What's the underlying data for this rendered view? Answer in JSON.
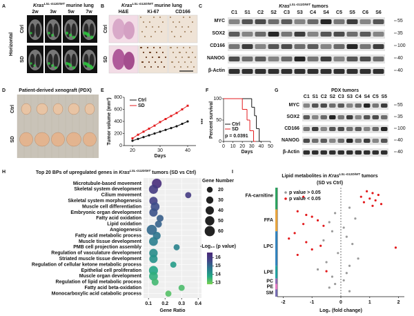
{
  "panel_letters": [
    "A",
    "B",
    "C",
    "D",
    "E",
    "F",
    "G",
    "H",
    "I"
  ],
  "panel_a": {
    "title": {
      "gene": "Kras",
      "allele": "LSL-G12D/WT",
      "post": "murine lung"
    },
    "columns": [
      "2w",
      "3w",
      "5w",
      "7w"
    ],
    "rows": [
      "Ctrl",
      "SD"
    ],
    "side_label": "Horizontal"
  },
  "panel_b": {
    "title": {
      "gene": "Kras",
      "allele": "LSL-G12D/WT",
      "post": "murine lung"
    },
    "columns": [
      "H&E",
      "Ki-67",
      "CD166"
    ],
    "rows": [
      "Ctrl",
      "SD"
    ]
  },
  "panel_c": {
    "title": {
      "gene": "Kras",
      "allele": "LSL-G12D/WT",
      "post": "tumors"
    },
    "lanes": [
      "C1",
      "S1",
      "C2",
      "S2",
      "C3",
      "S3",
      "C4",
      "S4",
      "C5",
      "S5",
      "C6",
      "S6"
    ],
    "rows": [
      {
        "name": "MYC",
        "marker": 55
      },
      {
        "name": "SOX2",
        "marker": 35
      },
      {
        "name": "CD166",
        "marker": 100
      },
      {
        "name": "NANOG",
        "marker": 40
      },
      {
        "name": "β-Actin",
        "marker": 40
      }
    ]
  },
  "panel_d": {
    "title": "Patient-derived xenograft (PDX)",
    "rows": [
      "Ctrl",
      "SD"
    ]
  },
  "panel_g": {
    "title": "PDX tumors",
    "lanes": [
      "C1",
      "S1",
      "C2",
      "S2",
      "C3",
      "S3",
      "C4",
      "S4",
      "C5",
      "S5"
    ],
    "rows": [
      {
        "name": "MYC",
        "marker": 55
      },
      {
        "name": "SOX2",
        "marker": 35
      },
      {
        "name": "CD166",
        "marker": 100
      },
      {
        "name": "NANOG",
        "marker": 40
      },
      {
        "name": "β-Actin",
        "marker": 40
      }
    ]
  },
  "chart_data": [
    {
      "type": "line",
      "ylabel": "Tumor volume (mm³)",
      "xlabel": "Days",
      "x": [
        20,
        22,
        24,
        26,
        28,
        30,
        32,
        34,
        36,
        38,
        40
      ],
      "series": [
        {
          "name": "Ctrl",
          "color": "#111111",
          "values": [
            80,
            110,
            140,
            170,
            200,
            230,
            260,
            290,
            320,
            360,
            400
          ]
        },
        {
          "name": "SD",
          "color": "#e31a1c",
          "values": [
            120,
            180,
            230,
            280,
            330,
            390,
            440,
            490,
            540,
            600,
            660
          ]
        }
      ],
      "xlim": [
        17,
        43
      ],
      "xticks": [
        20,
        30,
        40
      ],
      "ylim": [
        0,
        800
      ],
      "yticks": [
        0,
        200,
        400,
        600,
        800
      ],
      "annotation": "***"
    },
    {
      "type": "step",
      "ylabel": "Percent survival",
      "xlabel": "Days",
      "series": [
        {
          "name": "Ctrl",
          "color": "#111111",
          "x": [
            0,
            30,
            33,
            35,
            38
          ],
          "values": [
            100,
            80,
            60,
            30,
            0
          ]
        },
        {
          "name": "SD",
          "color": "#e31a1c",
          "x": [
            0,
            20,
            25,
            28,
            32
          ],
          "values": [
            100,
            75,
            50,
            25,
            0
          ]
        }
      ],
      "xlim": [
        0,
        50
      ],
      "xticks": [
        0,
        10,
        20,
        30,
        40,
        50
      ],
      "ylim": [
        0,
        100
      ],
      "yticks": [
        0,
        50,
        100
      ],
      "annotation": "p = 0.0391"
    },
    {
      "type": "bubble",
      "title": {
        "pre": "Top 20 BPs of upregulated genes in",
        "gene": "Kras",
        "allele": "LSL-G12D/WT",
        "post": "tumors (SD vs Ctrl)"
      },
      "categories": [
        "Microtubule-based movement",
        "Skeletal system development",
        "Cilium movement",
        "Skeletal system morphogenesis",
        "Muscle cell differentiation",
        "Embryonic organ development",
        "Fatty acid oxidation",
        "Lipid oxidation",
        "Angiogenesis",
        "Fatty acid metabolic process",
        "Muscle tissue development",
        "PMB cell projection assembly",
        "Regulation of vasculature development",
        "Striated muscle tissue development",
        "Regulation of cellular ketone metabolic process",
        "Epithelial cell proliferation",
        "Muscle organ development",
        "Regulation of lipid metabolic process",
        "Fatty acid beta-oxidation",
        "Monocarboxylic acid catabolic process"
      ],
      "category_colors": [
        "#222222",
        "#222222",
        "#222222",
        "#222222",
        "#222222",
        "#222222",
        "#d62728",
        "#d62728",
        "#222222",
        "#d62728",
        "#222222",
        "#222222",
        "#222222",
        "#222222",
        "#222222",
        "#222222",
        "#222222",
        "#d62728",
        "#d62728",
        "#222222"
      ],
      "values": [
        0.15,
        0.13,
        0.34,
        0.13,
        0.14,
        0.13,
        0.17,
        0.16,
        0.12,
        0.15,
        0.13,
        0.27,
        0.13,
        0.13,
        0.25,
        0.13,
        0.13,
        0.14,
        0.3,
        0.22
      ],
      "sizes": [
        55,
        48,
        22,
        40,
        45,
        40,
        28,
        28,
        60,
        35,
        45,
        22,
        42,
        40,
        22,
        48,
        45,
        28,
        22,
        22
      ],
      "pvalues": [
        16.5,
        16,
        16,
        15.8,
        15.5,
        15.4,
        15.2,
        15.1,
        15,
        14.8,
        14.6,
        14.5,
        14.3,
        14.2,
        14,
        13.8,
        13.6,
        13.4,
        13.3,
        13.2
      ],
      "xlabel": "Gene Ratio",
      "xlim": [
        0.07,
        0.42
      ],
      "xticks": [
        0.1,
        0.2,
        0.3,
        0.4
      ],
      "size_title": "Gene Number",
      "size_ticks": [
        20,
        30,
        40,
        50,
        60
      ],
      "color_title": "-Log₁₀ (p value)",
      "clim": [
        12.8,
        16.6
      ],
      "cticks": [
        13,
        14,
        15,
        16
      ],
      "colormap": [
        "#7ad151",
        "#22a884",
        "#2a788e",
        "#414487",
        "#482878"
      ]
    },
    {
      "type": "scatter",
      "title": {
        "pre": "Lipid metabolites in",
        "gene": "Kras",
        "allele": "LSL-G12D/WT",
        "post": "tumors"
      },
      "subtitle": "(SD vs Ctrl)",
      "xlabel": "Log₂ (fold change)",
      "xlim": [
        -2.2,
        2.2
      ],
      "xticks": [
        -2,
        -1,
        0,
        1,
        2
      ],
      "ylim": [
        0,
        60
      ],
      "vline": 0,
      "groups": [
        {
          "name": "FA-carnitine",
          "from": 0,
          "to": 11,
          "color": "#2ca25f"
        },
        {
          "name": "FFA",
          "from": 12,
          "to": 23,
          "color": "#e6a33c"
        },
        {
          "name": "LPC",
          "from": 24,
          "to": 42,
          "color": "#3182bd"
        },
        {
          "name": "LPE",
          "from": 43,
          "to": 49,
          "color": "#20a0a0"
        },
        {
          "name": "PC",
          "from": 50,
          "to": 52,
          "color": "#8c6bb1"
        },
        {
          "name": "PE",
          "from": 53,
          "to": 55,
          "color": "#e377c2"
        },
        {
          "name": "SM",
          "from": 56,
          "to": 59,
          "color": "#756bb1"
        }
      ],
      "series": [
        {
          "name": "p value > 0.05",
          "color": "#9a9a9a",
          "x": [
            0.3,
            -0.2,
            0.5,
            -0.4,
            0.1,
            -0.3,
            0.2,
            -0.6,
            0.4,
            -0.1,
            0.6,
            -0.5,
            0.3,
            -0.8,
            0.2,
            -0.3,
            0.1,
            -0.2,
            -0.4,
            0.3
          ],
          "values": [
            11,
            14,
            17,
            19,
            22,
            24,
            27,
            29,
            31,
            36,
            39,
            41,
            43,
            45,
            47,
            49,
            51,
            53,
            55,
            57
          ]
        },
        {
          "name": "p value < 0.05",
          "color": "#e31a1c",
          "x": [
            0.9,
            1.1,
            1.3,
            0.7,
            1.0,
            1.2,
            0.8,
            1.4,
            1.1,
            -1.3,
            -1.5,
            -1.2,
            -1.0,
            -0.8,
            -1.3,
            -0.6,
            -1.6,
            -1.8,
            -1.2,
            -0.7,
            -1.0,
            1.9,
            -1.5,
            -0.5
          ],
          "values": [
            2,
            3,
            4,
            5,
            6,
            7,
            8,
            9,
            10,
            5,
            13,
            15,
            16,
            18,
            20,
            21,
            25,
            28,
            30,
            32,
            34,
            33,
            37,
            46
          ]
        }
      ]
    }
  ]
}
